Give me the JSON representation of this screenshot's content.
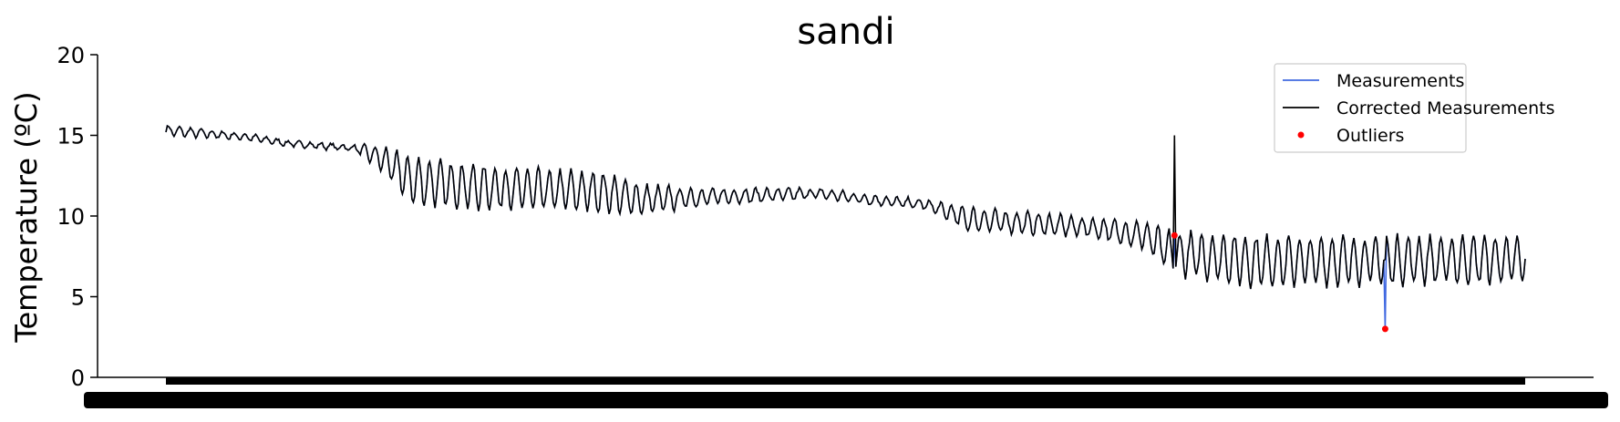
{
  "chart_data": {
    "type": "line",
    "title": "sandi",
    "xlabel": "",
    "ylabel": "Temperature (ºC)",
    "ylim": [
      0,
      20
    ],
    "yticks": [
      0,
      5,
      10,
      15,
      20
    ],
    "x_tick_labels_note": "x tick labels are overprinted into an illegible black band",
    "grid": false,
    "legend_position": "top-right",
    "colors": {
      "measurements": "#4169e1",
      "corrected": "#000000",
      "outliers": "#ff0000"
    },
    "legend": [
      "Measurements",
      "Corrected Measurements",
      "Outliers"
    ],
    "x_points": 1000,
    "profile": [
      {
        "x": 0,
        "mean": 15.3,
        "amp": 0.3
      },
      {
        "x": 60,
        "mean": 14.9,
        "amp": 0.2
      },
      {
        "x": 90,
        "mean": 14.5,
        "amp": 0.15
      },
      {
        "x": 140,
        "mean": 14.2,
        "amp": 0.2
      },
      {
        "x": 160,
        "mean": 13.5,
        "amp": 0.8
      },
      {
        "x": 180,
        "mean": 12.2,
        "amp": 1.4
      },
      {
        "x": 230,
        "mean": 11.8,
        "amp": 1.3
      },
      {
        "x": 320,
        "mean": 11.5,
        "amp": 1.2
      },
      {
        "x": 350,
        "mean": 11.0,
        "amp": 0.9
      },
      {
        "x": 400,
        "mean": 11.2,
        "amp": 0.5
      },
      {
        "x": 480,
        "mean": 11.4,
        "amp": 0.3
      },
      {
        "x": 520,
        "mean": 11.0,
        "amp": 0.3
      },
      {
        "x": 560,
        "mean": 10.7,
        "amp": 0.3
      },
      {
        "x": 590,
        "mean": 9.8,
        "amp": 0.7
      },
      {
        "x": 680,
        "mean": 9.3,
        "amp": 0.6
      },
      {
        "x": 720,
        "mean": 8.8,
        "amp": 0.8
      },
      {
        "x": 740,
        "mean": 7.7,
        "amp": 1.3
      },
      {
        "x": 800,
        "mean": 7.2,
        "amp": 1.5
      },
      {
        "x": 1000,
        "mean": 7.3,
        "amp": 1.4
      }
    ],
    "period": 8,
    "outliers": [
      {
        "x": 742,
        "corrected": 15.0,
        "measured": 8.8
      },
      {
        "x": 897,
        "corrected": 7.3,
        "measured": 3.0
      }
    ]
  }
}
